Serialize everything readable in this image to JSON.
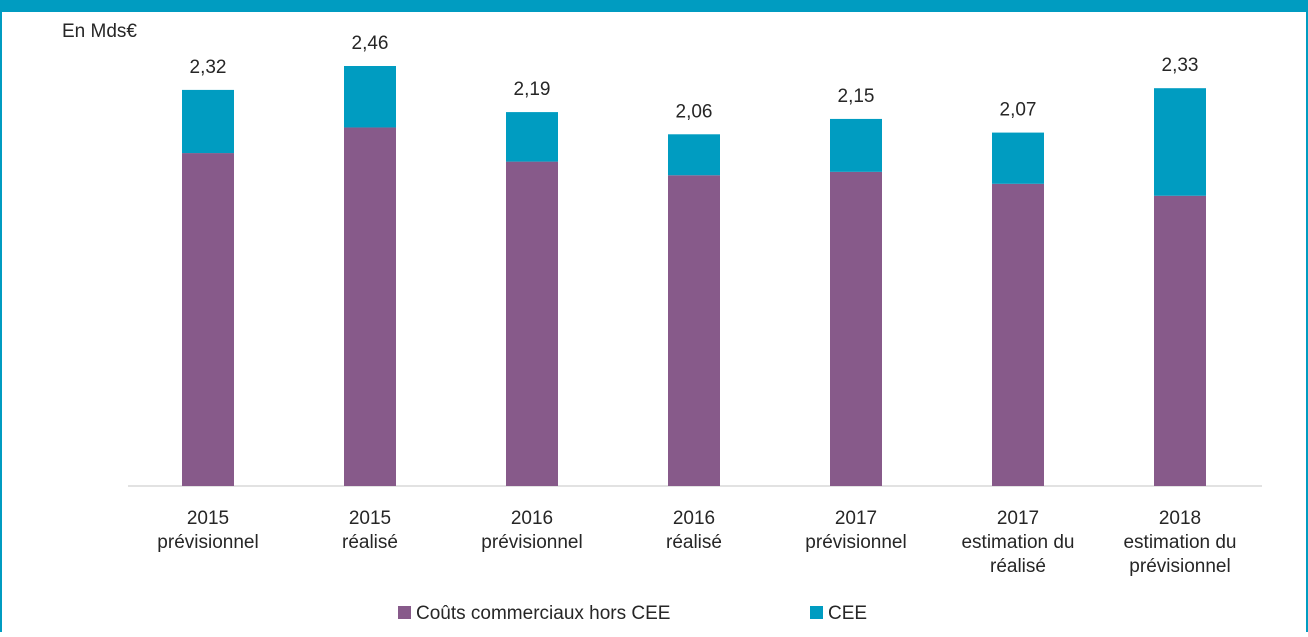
{
  "chart_data": {
    "type": "stacked-bar",
    "y_label": "En Mds€",
    "categories": [
      [
        "2015",
        "prévisionnel"
      ],
      [
        "2015",
        "réalisé"
      ],
      [
        "2016",
        "prévisionnel"
      ],
      [
        "2016",
        "réalisé"
      ],
      [
        "2017",
        "prévisionnel"
      ],
      [
        "2017",
        "estimation du",
        "réalisé"
      ],
      [
        "2018",
        "estimation du",
        "prévisionnel"
      ]
    ],
    "series": [
      {
        "name": "Coûts commerciaux hors CEE",
        "color": "#875a8a",
        "values": [
          1.95,
          2.1,
          1.9,
          1.82,
          1.84,
          1.77,
          1.7
        ]
      },
      {
        "name": "CEE",
        "color": "#009cc1",
        "values": [
          0.37,
          0.36,
          0.29,
          0.24,
          0.31,
          0.3,
          0.63
        ]
      }
    ],
    "totals": [
      2.32,
      2.46,
      2.19,
      2.06,
      2.15,
      2.07,
      2.33
    ],
    "total_labels": [
      "2,32",
      "2,46",
      "2,19",
      "2,06",
      "2,15",
      "2,07",
      "2,33"
    ]
  }
}
